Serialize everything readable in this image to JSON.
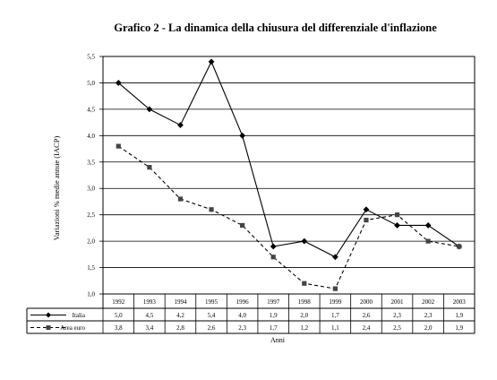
{
  "chart_data": {
    "type": "line",
    "title": "Grafico 2 - La dinamica della chiusura del differenziale d'inflazione",
    "xlabel": "Anni",
    "ylabel": "Variazioni % medie annue (IACP)",
    "ylim": [
      1.0,
      5.5
    ],
    "yticks": [
      "1,0",
      "1,5",
      "2,0",
      "2,5",
      "3,0",
      "3,5",
      "4,0",
      "4,5",
      "5,0",
      "5,5"
    ],
    "grid": true,
    "categories": [
      "1992",
      "1993",
      "1994",
      "1995",
      "1996",
      "1997",
      "1998",
      "1999",
      "2000",
      "2001",
      "2002",
      "2003"
    ],
    "series": [
      {
        "name": "Italia",
        "style": "solid-diamond",
        "values": [
          5.0,
          4.5,
          4.2,
          5.4,
          4.0,
          1.9,
          2.0,
          1.7,
          2.6,
          2.3,
          2.3,
          1.9
        ],
        "labels": [
          "5,0",
          "4,5",
          "4,2",
          "5,4",
          "4,0",
          "1,9",
          "2,0",
          "1,7",
          "2,6",
          "2,3",
          "2,3",
          "1,9"
        ]
      },
      {
        "name": "Area euro",
        "style": "dashed-square",
        "values": [
          3.8,
          3.4,
          2.8,
          2.6,
          2.3,
          1.7,
          1.2,
          1.1,
          2.4,
          2.5,
          2.0,
          1.9
        ],
        "labels": [
          "3,8",
          "3,4",
          "2,8",
          "2,6",
          "2,3",
          "1,7",
          "1,2",
          "1,1",
          "2,4",
          "2,5",
          "2,0",
          "1,9"
        ]
      }
    ]
  }
}
